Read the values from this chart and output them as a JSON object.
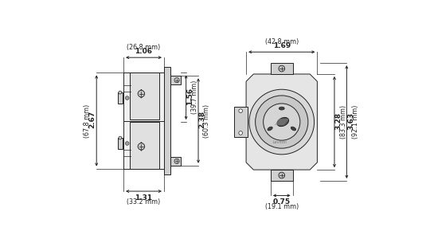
{
  "bg_color": "#ffffff",
  "line_color": "#222222",
  "fill_light": "#e8e8e8",
  "fill_mid": "#d0d0d0",
  "fill_dark": "#b0b0b0",
  "dims": {
    "top_width_label": "1.06",
    "top_width_mm": "(26.8 mm)",
    "left_height_label": "2.67",
    "left_height_mm": "(67.8 mm)",
    "right_height1_label": "1.56",
    "right_height1_mm": "(39.7 mm)",
    "right_height2_label": "2.38",
    "right_height2_mm": "(60.3 mm)",
    "bottom_width_label": "1.31",
    "bottom_width_mm": "(33.2 mm)",
    "front_width_label": "1.69",
    "front_width_mm": "(42.8 mm)",
    "front_height1_label": "3.28",
    "front_height1_mm": "(83.3 mm)",
    "front_height2_label": "3.63",
    "front_height2_mm": "(92.1 mm)",
    "front_bottom_label": "0.75",
    "front_bottom_mm": "(19.1 mm)"
  }
}
